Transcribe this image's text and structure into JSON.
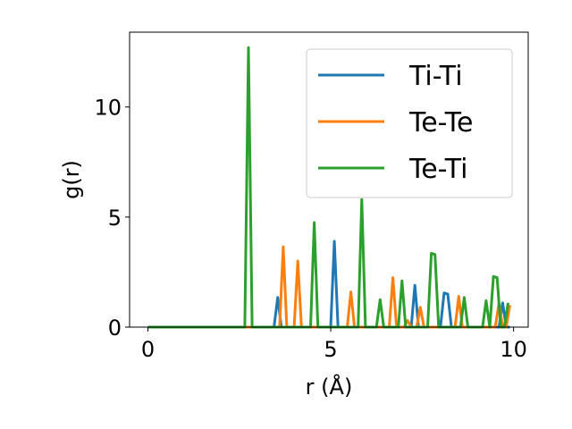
{
  "chart_data": {
    "type": "line",
    "xlabel": "r (Å)",
    "ylabel": "g(r)",
    "xlim": [
      -0.5,
      10.4
    ],
    "ylim": [
      0,
      13.4
    ],
    "xticks": [
      0,
      5,
      10
    ],
    "yticks": [
      0,
      5,
      10
    ],
    "xtick_labels": [
      "0",
      "5",
      "10"
    ],
    "ytick_labels": [
      "0",
      "5",
      "10"
    ],
    "grid": false,
    "legend_position": "top-right",
    "series": [
      {
        "name": "Ti-Ti",
        "color": "#1f77b4",
        "points": [
          [
            0.0,
            0.0
          ],
          [
            3.45,
            0.0
          ],
          [
            3.55,
            1.35
          ],
          [
            3.65,
            0.0
          ],
          [
            5.0,
            0.0
          ],
          [
            5.1,
            3.9
          ],
          [
            5.2,
            0.0
          ],
          [
            7.2,
            0.0
          ],
          [
            7.3,
            1.9
          ],
          [
            7.4,
            0.0
          ],
          [
            8.0,
            0.0
          ],
          [
            8.1,
            1.55
          ],
          [
            8.2,
            1.5
          ],
          [
            8.3,
            0.0
          ],
          [
            9.6,
            0.0
          ],
          [
            9.7,
            1.1
          ],
          [
            9.8,
            0.0
          ],
          [
            9.9,
            0.0
          ]
        ]
      },
      {
        "name": "Te-Te",
        "color": "#ff7f0e",
        "points": [
          [
            0.0,
            0.0
          ],
          [
            3.6,
            0.0
          ],
          [
            3.7,
            3.65
          ],
          [
            3.8,
            0.0
          ],
          [
            4.0,
            0.0
          ],
          [
            4.1,
            3.0
          ],
          [
            4.2,
            0.0
          ],
          [
            5.45,
            0.0
          ],
          [
            5.55,
            1.6
          ],
          [
            5.65,
            0.0
          ],
          [
            6.6,
            0.0
          ],
          [
            6.7,
            2.25
          ],
          [
            6.8,
            0.0
          ],
          [
            7.0,
            0.0
          ],
          [
            7.1,
            0.3
          ],
          [
            7.2,
            0.0
          ],
          [
            7.35,
            0.0
          ],
          [
            7.45,
            0.9
          ],
          [
            7.55,
            0.0
          ],
          [
            8.4,
            0.0
          ],
          [
            8.5,
            1.4
          ],
          [
            8.6,
            0.0
          ],
          [
            9.5,
            0.0
          ],
          [
            9.6,
            1.1
          ],
          [
            9.7,
            0.0
          ],
          [
            9.8,
            0.0
          ],
          [
            9.9,
            1.0
          ]
        ]
      },
      {
        "name": "Te-Ti",
        "color": "#2ca02c",
        "points": [
          [
            0.0,
            0.0
          ],
          [
            2.65,
            0.0
          ],
          [
            2.75,
            12.7
          ],
          [
            2.85,
            0.0
          ],
          [
            4.45,
            0.0
          ],
          [
            4.55,
            4.75
          ],
          [
            4.65,
            0.0
          ],
          [
            5.75,
            0.0
          ],
          [
            5.85,
            5.8
          ],
          [
            5.95,
            0.0
          ],
          [
            6.25,
            0.0
          ],
          [
            6.35,
            1.25
          ],
          [
            6.45,
            0.0
          ],
          [
            6.85,
            0.0
          ],
          [
            6.95,
            2.1
          ],
          [
            7.05,
            0.0
          ],
          [
            7.65,
            0.0
          ],
          [
            7.75,
            3.35
          ],
          [
            7.85,
            3.3
          ],
          [
            7.95,
            0.0
          ],
          [
            8.55,
            0.0
          ],
          [
            8.65,
            1.35
          ],
          [
            8.75,
            0.0
          ],
          [
            9.15,
            0.0
          ],
          [
            9.25,
            1.2
          ],
          [
            9.35,
            0.0
          ],
          [
            9.45,
            2.3
          ],
          [
            9.55,
            2.25
          ],
          [
            9.65,
            0.0
          ],
          [
            9.75,
            0.0
          ],
          [
            9.85,
            1.1
          ]
        ]
      }
    ]
  }
}
